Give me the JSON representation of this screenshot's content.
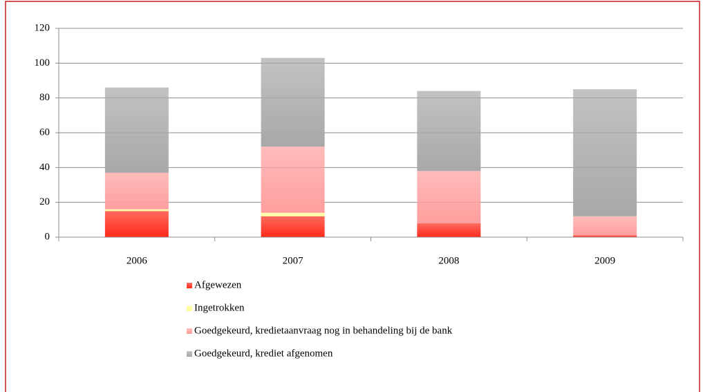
{
  "chart_data": {
    "type": "stacked_bar",
    "categories": [
      "2006",
      "2007",
      "2008",
      "2009"
    ],
    "series": [
      {
        "name": "Afgewezen",
        "color": "#ff2a1a",
        "values": [
          15,
          12,
          8,
          1
        ]
      },
      {
        "name": "Ingetrokken",
        "color": "#ffff99",
        "values": [
          1,
          2,
          0,
          0
        ]
      },
      {
        "name": "Goedgekeurd, kredietaanvraag nog in behandeling bij de bank",
        "color": "#ff9e9e",
        "values": [
          21,
          38,
          30,
          11
        ]
      },
      {
        "name": "Goedgekeurd, krediet afgenomen",
        "color": "#a8a8a8",
        "values": [
          49,
          51,
          46,
          73
        ]
      }
    ],
    "ylim": [
      0,
      120
    ],
    "yticks": [
      0,
      20,
      40,
      60,
      80,
      100,
      120
    ],
    "grid": true
  }
}
